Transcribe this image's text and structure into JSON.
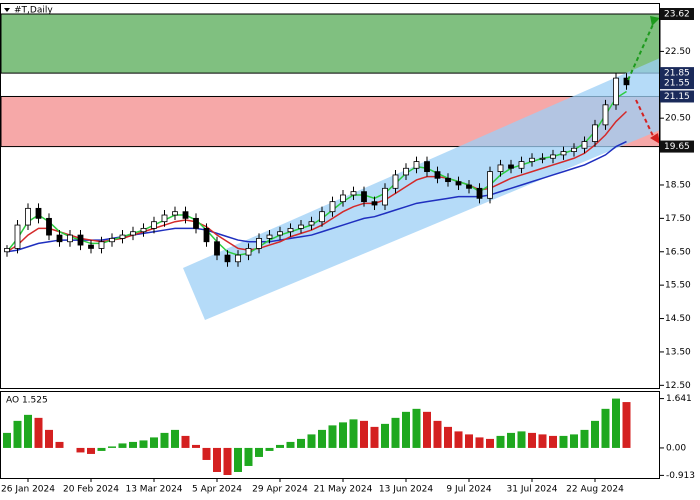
{
  "chart_data": {
    "type": "candlestick",
    "title": "#T,Daily",
    "categories": [
      null,
      null,
      "26 Jan 2024",
      null,
      null,
      null,
      null,
      null,
      "20 Feb 2024",
      null,
      null,
      null,
      null,
      null,
      "13 Mar 2024",
      null,
      null,
      null,
      null,
      null,
      "5 Apr 2024",
      null,
      null,
      null,
      null,
      null,
      "29 Apr 2024",
      null,
      null,
      null,
      null,
      null,
      "21 May 2024",
      null,
      null,
      null,
      null,
      null,
      "13 Jun 2024",
      null,
      null,
      null,
      null,
      null,
      "9 Jul 2024",
      null,
      null,
      null,
      null,
      null,
      "31 Jul 2024",
      null,
      null,
      null,
      null,
      null,
      "22 Aug 2024",
      null,
      null,
      null
    ],
    "open": [
      16.5,
      16.6,
      17.3,
      17.8,
      17.5,
      17.0,
      16.8,
      17.0,
      16.7,
      16.6,
      16.8,
      16.9,
      17.0,
      17.1,
      17.2,
      17.4,
      17.6,
      17.7,
      17.5,
      17.2,
      16.8,
      16.4,
      16.2,
      16.4,
      16.6,
      16.9,
      17.0,
      17.1,
      17.2,
      17.3,
      17.4,
      17.7,
      18.0,
      18.2,
      18.3,
      18.0,
      17.9,
      18.4,
      18.8,
      19.0,
      19.2,
      18.9,
      18.7,
      18.6,
      18.5,
      18.4,
      18.1,
      18.9,
      19.1,
      19.0,
      19.2,
      19.3,
      19.3,
      19.4,
      19.5,
      19.6,
      19.8,
      20.3,
      20.9,
      21.7
    ],
    "high": [
      16.7,
      17.45,
      17.95,
      17.95,
      17.65,
      17.15,
      17.15,
      17.15,
      16.85,
      16.95,
      17.05,
      17.15,
      17.25,
      17.35,
      17.55,
      17.75,
      17.85,
      17.85,
      17.65,
      17.35,
      16.95,
      16.55,
      16.55,
      16.75,
      17.05,
      17.15,
      17.25,
      17.35,
      17.45,
      17.55,
      17.85,
      18.15,
      18.35,
      18.45,
      18.45,
      18.15,
      18.55,
      18.95,
      19.15,
      19.35,
      19.35,
      19.05,
      18.85,
      18.75,
      18.65,
      18.55,
      19.05,
      19.25,
      19.25,
      19.35,
      19.45,
      19.45,
      19.55,
      19.65,
      19.75,
      19.95,
      20.45,
      21.05,
      21.85,
      21.85
    ],
    "low": [
      16.35,
      16.45,
      17.15,
      17.35,
      16.85,
      16.65,
      16.65,
      16.55,
      16.45,
      16.45,
      16.65,
      16.75,
      16.85,
      16.95,
      17.05,
      17.25,
      17.45,
      17.35,
      17.05,
      16.65,
      16.25,
      16.05,
      16.05,
      16.25,
      16.45,
      16.75,
      16.85,
      16.95,
      17.05,
      17.15,
      17.25,
      17.55,
      17.85,
      18.05,
      17.85,
      17.75,
      17.75,
      18.25,
      18.65,
      18.85,
      18.75,
      18.55,
      18.45,
      18.35,
      18.25,
      17.95,
      17.95,
      18.75,
      18.85,
      18.85,
      19.05,
      19.15,
      19.15,
      19.25,
      19.35,
      19.45,
      19.65,
      20.15,
      20.75,
      21.35
    ],
    "close": [
      16.6,
      17.3,
      17.8,
      17.5,
      17.0,
      16.8,
      17.0,
      16.7,
      16.6,
      16.8,
      16.9,
      17.0,
      17.1,
      17.2,
      17.4,
      17.6,
      17.7,
      17.5,
      17.2,
      16.8,
      16.4,
      16.2,
      16.4,
      16.6,
      16.9,
      17.0,
      17.1,
      17.2,
      17.3,
      17.4,
      17.7,
      18.0,
      18.2,
      18.3,
      18.0,
      17.9,
      18.4,
      18.8,
      19.0,
      19.2,
      18.9,
      18.7,
      18.6,
      18.5,
      18.4,
      18.1,
      18.9,
      19.1,
      19.0,
      19.2,
      19.3,
      19.3,
      19.4,
      19.5,
      19.6,
      19.8,
      20.3,
      20.9,
      21.7,
      21.5
    ],
    "series": [
      {
        "color": "#1f2fbf",
        "values": [
          16.5,
          16.55,
          16.65,
          16.75,
          16.8,
          16.85,
          16.85,
          16.85,
          16.85,
          16.85,
          16.9,
          16.95,
          17.0,
          17.05,
          17.1,
          17.15,
          17.2,
          17.2,
          17.2,
          17.15,
          17.05,
          16.95,
          16.85,
          16.8,
          16.8,
          16.8,
          16.85,
          16.9,
          16.95,
          17.0,
          17.1,
          17.2,
          17.3,
          17.4,
          17.5,
          17.55,
          17.65,
          17.75,
          17.85,
          17.95,
          18.0,
          18.05,
          18.1,
          18.15,
          18.15,
          18.15,
          18.2,
          18.3,
          18.4,
          18.5,
          18.6,
          18.7,
          18.8,
          18.9,
          19.0,
          19.1,
          19.25,
          19.4,
          19.65,
          19.8
        ]
      },
      {
        "color": "#d42a2a",
        "values": [
          16.5,
          16.7,
          17.0,
          17.2,
          17.2,
          17.1,
          17.0,
          16.9,
          16.85,
          16.8,
          16.85,
          16.9,
          17.0,
          17.1,
          17.2,
          17.3,
          17.4,
          17.45,
          17.4,
          17.25,
          17.0,
          16.8,
          16.6,
          16.55,
          16.6,
          16.7,
          16.8,
          16.95,
          17.05,
          17.15,
          17.3,
          17.5,
          17.7,
          17.85,
          17.95,
          17.95,
          18.05,
          18.25,
          18.45,
          18.65,
          18.75,
          18.75,
          18.7,
          18.6,
          18.5,
          18.35,
          18.4,
          18.55,
          18.7,
          18.8,
          18.9,
          19.0,
          19.1,
          19.2,
          19.3,
          19.45,
          19.7,
          20.0,
          20.4,
          20.7
        ]
      },
      {
        "color": "#2ecc40",
        "values": [
          16.5,
          16.9,
          17.4,
          17.6,
          17.4,
          17.1,
          16.95,
          16.85,
          16.75,
          16.75,
          16.85,
          16.95,
          17.05,
          17.15,
          17.3,
          17.45,
          17.6,
          17.6,
          17.45,
          17.15,
          16.8,
          16.5,
          16.4,
          16.45,
          16.65,
          16.85,
          17.0,
          17.1,
          17.2,
          17.3,
          17.5,
          17.75,
          18.0,
          18.2,
          18.2,
          18.1,
          18.25,
          18.55,
          18.85,
          19.05,
          19.0,
          18.85,
          18.7,
          18.6,
          18.5,
          18.3,
          18.5,
          18.8,
          19.0,
          19.1,
          19.2,
          19.3,
          19.35,
          19.45,
          19.55,
          19.75,
          20.1,
          20.6,
          21.1,
          21.3
        ]
      }
    ],
    "ylim": [
      12.42,
      23.68
    ],
    "yticks": [
      {
        "value": 12.5,
        "label": "12.50"
      },
      {
        "value": 13.5,
        "label": "13.50"
      },
      {
        "value": 14.5,
        "label": "14.50"
      },
      {
        "value": 15.5,
        "label": "15.50"
      },
      {
        "value": 16.5,
        "label": "16.50"
      },
      {
        "value": 17.5,
        "label": "17.50"
      },
      {
        "value": 18.5,
        "label": "18.50"
      },
      {
        "value": 20.5,
        "label": "20.50"
      },
      {
        "value": 22.5,
        "label": "22.50"
      }
    ],
    "price_markers": [
      23.62,
      21.85,
      21.55,
      21.15,
      19.65
    ],
    "zones": [
      {
        "from": 21.85,
        "to": 23.62,
        "color": "#80c080"
      },
      {
        "from": 19.65,
        "to": 21.15,
        "color": "#f6a8a8"
      }
    ],
    "ao": {
      "label": "AO 1.525",
      "up_color": "#1fa81f",
      "down_color": "#d42020",
      "values": [
        0.5,
        0.9,
        1.1,
        1.0,
        0.6,
        0.2,
        0.0,
        -0.15,
        -0.2,
        -0.1,
        0.05,
        0.15,
        0.2,
        0.25,
        0.35,
        0.5,
        0.6,
        0.4,
        0.1,
        -0.4,
        -0.8,
        -0.9,
        -0.8,
        -0.6,
        -0.3,
        -0.1,
        0.1,
        0.2,
        0.3,
        0.45,
        0.6,
        0.75,
        0.85,
        0.95,
        0.9,
        0.7,
        0.8,
        1.0,
        1.2,
        1.3,
        1.2,
        0.9,
        0.7,
        0.55,
        0.45,
        0.35,
        0.3,
        0.4,
        0.5,
        0.55,
        0.5,
        0.45,
        0.4,
        0.4,
        0.45,
        0.6,
        0.9,
        1.3,
        1.641,
        1.525
      ],
      "ylim": [
        -1.0,
        1.86
      ],
      "yticks": [
        1.641,
        {
          "value": 0,
          "label": "0.00"
        },
        -0.913
      ]
    }
  }
}
